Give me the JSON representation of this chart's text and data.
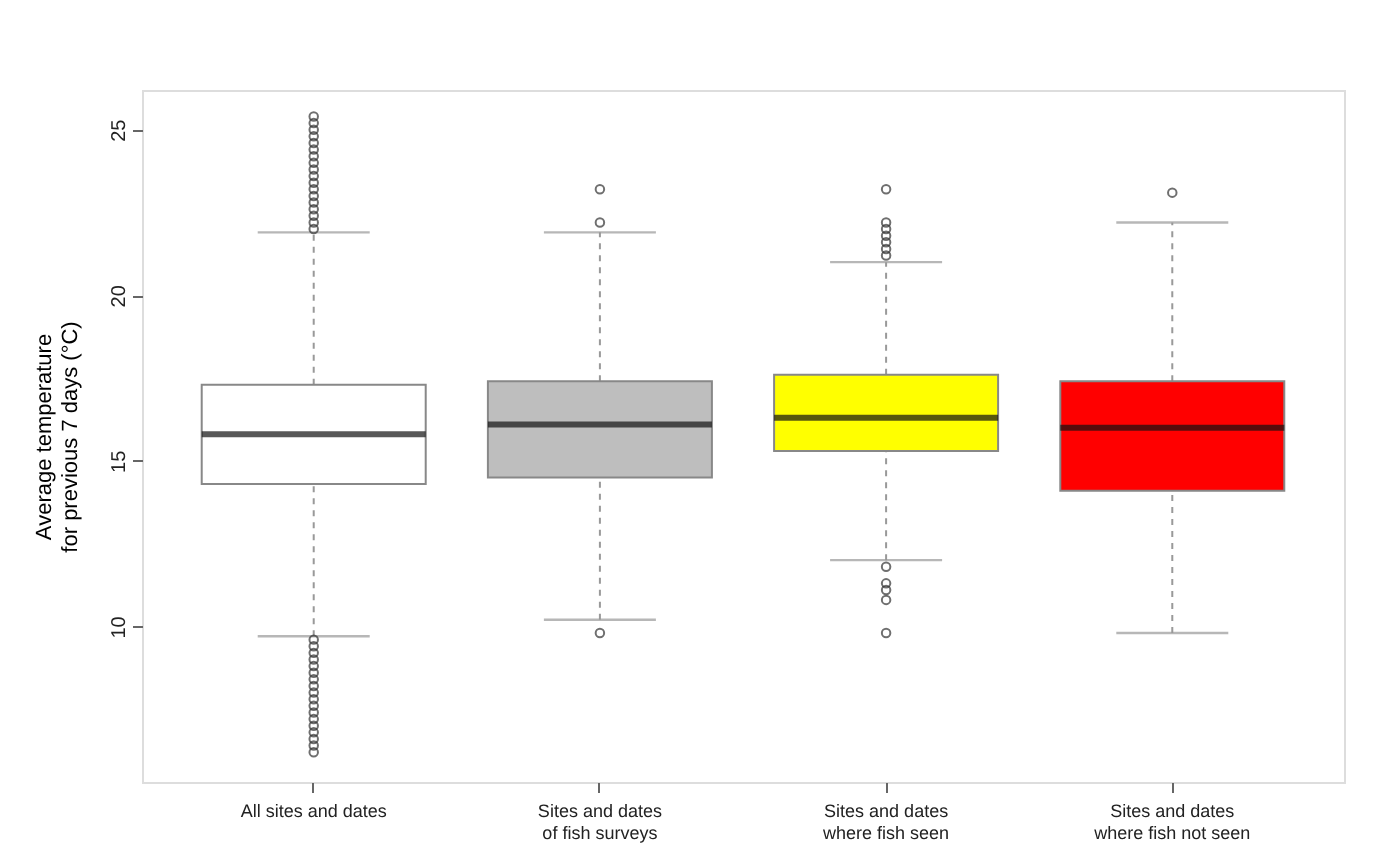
{
  "chart_data": {
    "type": "box",
    "ylabel": "Average temperature\nfor previous 7 days (°C)",
    "categories": [
      "All sites and dates",
      "Sites and dates\nof fish surveys",
      "Sites and dates\nwhere fish seen",
      "Sites and dates\nwhere fish not seen"
    ],
    "colors": [
      "#ffffff",
      "#bebebe",
      "#ffff00",
      "#ff0000"
    ],
    "boxes": [
      {
        "low": 9.7,
        "q1": 14.3,
        "median": 15.8,
        "q3": 17.3,
        "high": 21.9,
        "outliers": [
          22.0,
          22.2,
          22.4,
          22.6,
          22.8,
          23.0,
          23.2,
          23.4,
          23.6,
          23.8,
          24.0,
          24.2,
          24.4,
          24.6,
          24.8,
          25.0,
          25.2,
          25.4,
          9.6,
          9.4,
          9.2,
          9.0,
          8.8,
          8.6,
          8.4,
          8.2,
          8.0,
          7.8,
          7.6,
          7.4,
          7.2,
          7.0,
          6.8,
          6.6,
          6.4,
          6.2
        ]
      },
      {
        "low": 10.2,
        "q1": 14.5,
        "median": 16.1,
        "q3": 17.4,
        "high": 21.9,
        "outliers": [
          22.2,
          23.2,
          9.8
        ]
      },
      {
        "low": 12.0,
        "q1": 15.3,
        "median": 16.3,
        "q3": 17.6,
        "high": 21.0,
        "outliers": [
          23.2,
          22.2,
          22.0,
          21.8,
          21.6,
          21.4,
          21.2,
          11.8,
          11.3,
          11.1,
          10.8,
          9.8
        ]
      },
      {
        "low": 9.8,
        "q1": 14.1,
        "median": 16.0,
        "q3": 17.4,
        "high": 22.2,
        "outliers": [
          23.1
        ]
      }
    ],
    "ylim": [
      5.3,
      26.2
    ],
    "yticks": [
      10,
      15,
      20,
      25
    ]
  }
}
